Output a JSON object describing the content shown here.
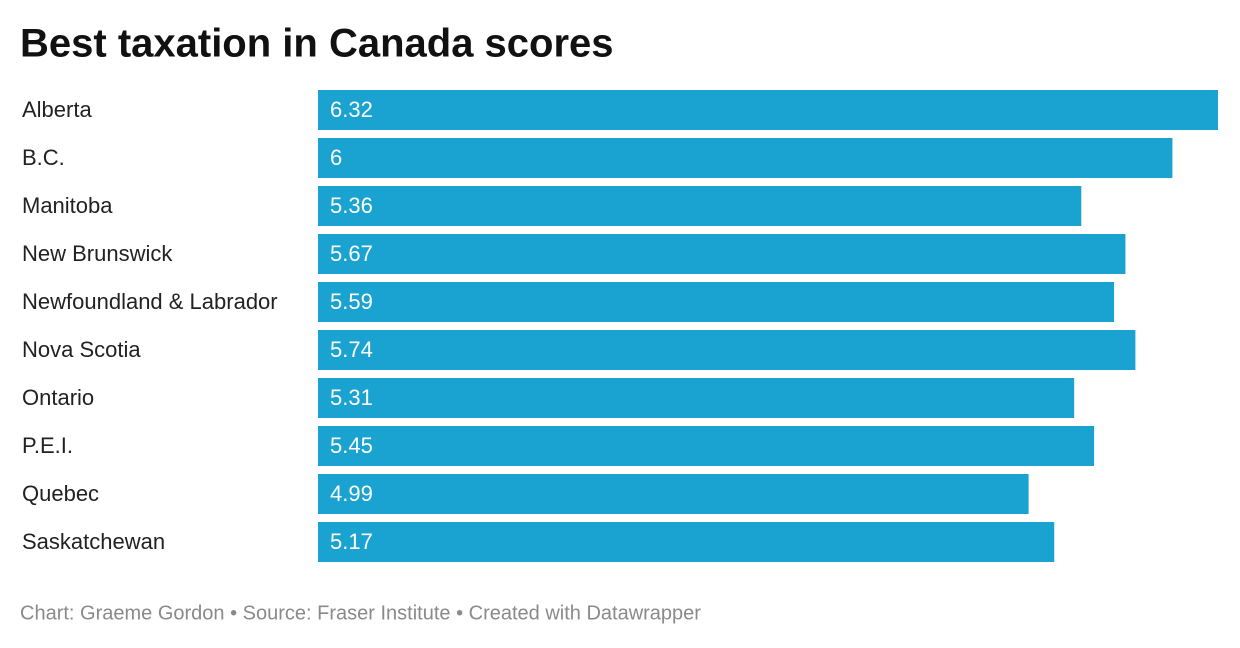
{
  "chart_data": {
    "type": "bar",
    "orientation": "horizontal",
    "title": "Best taxation in Canada scores",
    "categories": [
      "Alberta",
      "B.C.",
      "Manitoba",
      "New Brunswick",
      "Newfoundland & Labrador",
      "Nova Scotia",
      "Ontario",
      "P.E.I.",
      "Quebec",
      "Saskatchewan"
    ],
    "values": [
      6.32,
      6,
      5.36,
      5.67,
      5.59,
      5.74,
      5.31,
      5.45,
      4.99,
      5.17
    ],
    "color": "#1aa3d0",
    "xlim": [
      0,
      6.32
    ],
    "footer": "Chart: Graeme Gordon • Source: Fraser Institute • Created with Datawrapper"
  }
}
